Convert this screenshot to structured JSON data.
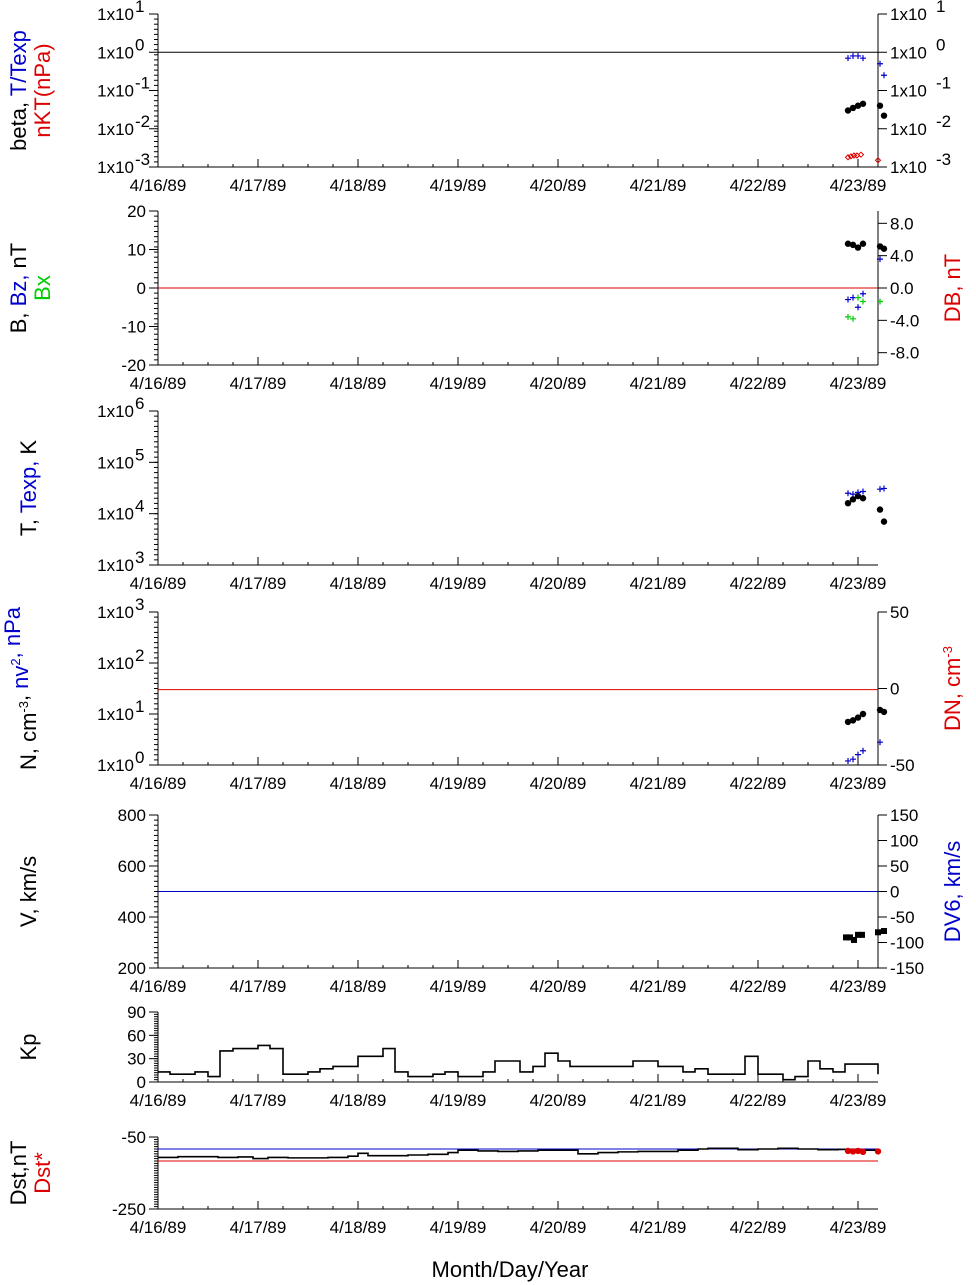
{
  "colors": {
    "black": "#000000",
    "blue": "#0000cc",
    "red": "#dd0000",
    "green": "#00cc00"
  },
  "x_tick_labels": [
    "4/16/89",
    "4/17/89",
    "4/18/89",
    "4/19/89",
    "4/20/89",
    "4/21/89",
    "4/22/89",
    "4/23/89"
  ],
  "x_axis_label": "Month/Day/Year",
  "chart_data": [
    {
      "id": "beta",
      "type": "scatter",
      "y_scale": "log",
      "ylim": [
        0.001,
        10
      ],
      "y_tick_labels": [
        "1x10",
        "1x10",
        "1x10",
        "1x10",
        "1x10"
      ],
      "y_tick_exponents": [
        "-3",
        "-2",
        "-1",
        "0",
        "1"
      ],
      "ylabel_parts": [
        {
          "text": "beta, ",
          "color": "black"
        },
        {
          "text": "T/Texp",
          "color": "blue"
        }
      ],
      "ylabel2": {
        "text": "nKT(nPa)",
        "color": "red"
      },
      "ref_line": {
        "y": 1,
        "color": "black"
      },
      "series": [
        {
          "marker": "dot",
          "color": "black",
          "x": [
            6.9,
            6.95,
            7.0,
            7.05,
            7.22,
            7.26
          ],
          "y": [
            0.03,
            0.035,
            0.04,
            0.045,
            0.04,
            0.022
          ]
        },
        {
          "marker": "plus",
          "color": "blue",
          "x": [
            6.9,
            6.95,
            7.0,
            7.05,
            7.22,
            7.26
          ],
          "y": [
            0.7,
            0.8,
            0.8,
            0.7,
            0.5,
            0.25
          ]
        },
        {
          "marker": "diamond",
          "color": "red",
          "x": [
            6.9,
            6.93,
            6.96,
            6.99,
            7.03,
            7.2
          ],
          "y": [
            0.0018,
            0.0019,
            0.002,
            0.002,
            0.0021,
            0.0015
          ]
        }
      ]
    },
    {
      "id": "B",
      "type": "scatter",
      "ylim": [
        -20,
        20
      ],
      "y_tick_labels": [
        "-20",
        "-10",
        "0",
        "10",
        "20"
      ],
      "right_tick_labels": [
        "-8.0",
        "-4.0",
        "0.0",
        "4.0",
        "8.0"
      ],
      "ylabel_parts": [
        {
          "text": "B, ",
          "color": "black"
        },
        {
          "text": "Bz, ",
          "color": "blue"
        },
        {
          "text": "nT",
          "color": "black"
        }
      ],
      "ylabel2": {
        "text": "Bx",
        "color": "green"
      },
      "right_label": {
        "text": "DB, nT",
        "color": "red"
      },
      "ref_line": {
        "y": 0,
        "color": "red"
      },
      "series": [
        {
          "marker": "dot",
          "color": "black",
          "x": [
            6.9,
            6.95,
            7.0,
            7.05,
            7.22,
            7.26
          ],
          "y": [
            11.5,
            11.2,
            10.5,
            11.5,
            10.8,
            10.2
          ]
        },
        {
          "marker": "plus",
          "color": "blue",
          "x": [
            6.9,
            6.95,
            7.0,
            7.05,
            7.22
          ],
          "y": [
            -3,
            -2.5,
            -5,
            -1.5,
            7.5
          ]
        },
        {
          "marker": "plus",
          "color": "green",
          "x": [
            6.9,
            6.95,
            7.0,
            7.05,
            7.22
          ],
          "y": [
            -7.5,
            -8,
            -2.5,
            -3.5,
            -3.5
          ]
        }
      ]
    },
    {
      "id": "T",
      "type": "scatter",
      "y_scale": "log",
      "ylim": [
        1000,
        1000000
      ],
      "y_tick_labels": [
        "1x10",
        "1x10",
        "1x10",
        "1x10"
      ],
      "y_tick_exponents": [
        "3",
        "4",
        "5",
        "6"
      ],
      "ylabel_parts": [
        {
          "text": "T, ",
          "color": "black"
        },
        {
          "text": "Texp, ",
          "color": "blue"
        },
        {
          "text": "K",
          "color": "black"
        }
      ],
      "series": [
        {
          "marker": "dot",
          "color": "black",
          "x": [
            6.9,
            6.95,
            7.0,
            7.05,
            7.22,
            7.26
          ],
          "y": [
            16000,
            19000,
            22000,
            20000,
            12000,
            7000
          ]
        },
        {
          "marker": "plus",
          "color": "blue",
          "x": [
            6.9,
            6.95,
            7.0,
            7.05,
            7.22,
            7.26
          ],
          "y": [
            25000,
            24000,
            26000,
            27000,
            30000,
            31000
          ]
        }
      ]
    },
    {
      "id": "N",
      "type": "scatter",
      "y_scale": "log",
      "ylim": [
        1,
        1000
      ],
      "y_tick_labels": [
        "1x10",
        "1x10",
        "1x10",
        "1x10"
      ],
      "y_tick_exponents": [
        "0",
        "1",
        "2",
        "3"
      ],
      "right_tick_labels": [
        "-50",
        "0",
        "50"
      ],
      "ylabel_parts": [
        {
          "text": "N, cm",
          "color": "black"
        },
        {
          "text": "-3",
          "color": "black",
          "sup": true
        },
        {
          "text": ", ",
          "color": "black"
        },
        {
          "text": "nv",
          "color": "blue"
        },
        {
          "text": "2",
          "color": "blue",
          "sup": true
        },
        {
          "text": ", nPa",
          "color": "blue"
        }
      ],
      "right_label": {
        "text": "DN, cm",
        "sup": "-3",
        "color": "red"
      },
      "ref_line": {
        "y": 30,
        "color": "red"
      },
      "series": [
        {
          "marker": "dot",
          "color": "black",
          "x": [
            6.9,
            6.95,
            7.0,
            7.05,
            7.22,
            7.26
          ],
          "y": [
            7,
            7.5,
            8.5,
            10,
            12,
            11
          ]
        },
        {
          "marker": "plus",
          "color": "blue",
          "x": [
            6.9,
            6.95,
            7.0,
            7.05,
            7.22
          ],
          "y": [
            1.2,
            1.3,
            1.6,
            1.9,
            2.8
          ]
        }
      ]
    },
    {
      "id": "V",
      "type": "line",
      "ylim": [
        200,
        800
      ],
      "y_tick_labels": [
        "200",
        "400",
        "600",
        "800"
      ],
      "right_tick_labels": [
        "-150",
        "-100",
        "-50",
        "0",
        "50",
        "100",
        "150"
      ],
      "ylabel_parts": [
        {
          "text": "V, km/s",
          "color": "black"
        }
      ],
      "right_label": {
        "text": "DV6, km/s",
        "color": "blue"
      },
      "ref_line": {
        "y": 500,
        "color": "blue"
      },
      "series": [
        {
          "marker": "square",
          "color": "black",
          "x": [
            6.88,
            6.92,
            6.96,
            7.0,
            7.04,
            7.2,
            7.26
          ],
          "y": [
            320,
            320,
            310,
            330,
            330,
            340,
            345
          ]
        }
      ]
    },
    {
      "id": "Kp",
      "type": "line",
      "ylim": [
        0,
        90
      ],
      "y_tick_labels": [
        "0",
        "30",
        "60",
        "90"
      ],
      "ylabel_parts": [
        {
          "text": "Kp",
          "color": "black"
        }
      ],
      "series": [
        {
          "marker": "none",
          "color": "black",
          "x": [
            0,
            0.12,
            0.25,
            0.37,
            0.5,
            0.62,
            0.75,
            0.87,
            1.0,
            1.12,
            1.25,
            1.37,
            1.5,
            1.62,
            1.75,
            1.87,
            2.0,
            2.12,
            2.25,
            2.37,
            2.5,
            2.62,
            2.75,
            2.87,
            3.0,
            3.12,
            3.25,
            3.37,
            3.5,
            3.62,
            3.75,
            3.87,
            4.0,
            4.12,
            4.25,
            4.37,
            4.5,
            4.62,
            4.75,
            4.87,
            5.0,
            5.12,
            5.25,
            5.37,
            5.5,
            5.62,
            5.75,
            5.87,
            6.0,
            6.12,
            6.25,
            6.37,
            6.5,
            6.62,
            6.75,
            6.87,
            7.0,
            7.12,
            7.2
          ],
          "y": [
            13,
            10,
            10,
            13,
            7,
            40,
            43,
            43,
            47,
            43,
            10,
            10,
            13,
            17,
            20,
            20,
            33,
            33,
            43,
            13,
            7,
            7,
            10,
            13,
            7,
            7,
            13,
            27,
            27,
            13,
            20,
            37,
            27,
            20,
            20,
            20,
            20,
            20,
            27,
            27,
            20,
            20,
            13,
            17,
            10,
            10,
            10,
            33,
            10,
            10,
            3,
            7,
            27,
            17,
            13,
            23,
            23,
            23,
            10
          ]
        }
      ]
    },
    {
      "id": "Dst",
      "type": "line",
      "ylim": [
        -250,
        50
      ],
      "y_tick_labels": [
        "-250",
        "-50"
      ],
      "ylabel_parts": [
        {
          "text": "Dst,nT",
          "color": "black"
        }
      ],
      "ylabel2": {
        "text": "Dst*",
        "color": "red"
      },
      "ref_lines": [
        {
          "y": 0,
          "color": "blue"
        },
        {
          "y": -50,
          "color": "red"
        }
      ],
      "series": [
        {
          "marker": "none",
          "color": "black",
          "x": [
            0,
            0.2,
            0.4,
            0.6,
            0.8,
            0.95,
            1.1,
            1.3,
            1.5,
            1.7,
            1.9,
            2.0,
            2.1,
            2.3,
            2.5,
            2.7,
            2.9,
            3.0,
            3.2,
            3.4,
            3.6,
            3.8,
            4.0,
            4.2,
            4.4,
            4.6,
            4.8,
            5.0,
            5.2,
            5.4,
            5.5,
            5.6,
            5.8,
            6.0,
            6.2,
            6.4,
            6.6,
            6.8,
            7.0,
            7.2
          ],
          "y": [
            -35,
            -32,
            -32,
            -35,
            -33,
            -40,
            -35,
            -37,
            -37,
            -35,
            -30,
            -18,
            -28,
            -28,
            -25,
            -22,
            -15,
            -5,
            -8,
            -10,
            -8,
            -5,
            -5,
            -20,
            -15,
            -12,
            -10,
            -10,
            -5,
            0,
            3,
            3,
            -3,
            0,
            3,
            0,
            -3,
            -2,
            -5,
            -8
          ]
        },
        {
          "marker": "dot",
          "color": "red",
          "x": [
            6.9,
            6.95,
            7.0,
            7.05,
            7.2
          ],
          "y": [
            -8,
            -10,
            -8,
            -12,
            -10
          ]
        }
      ]
    }
  ]
}
